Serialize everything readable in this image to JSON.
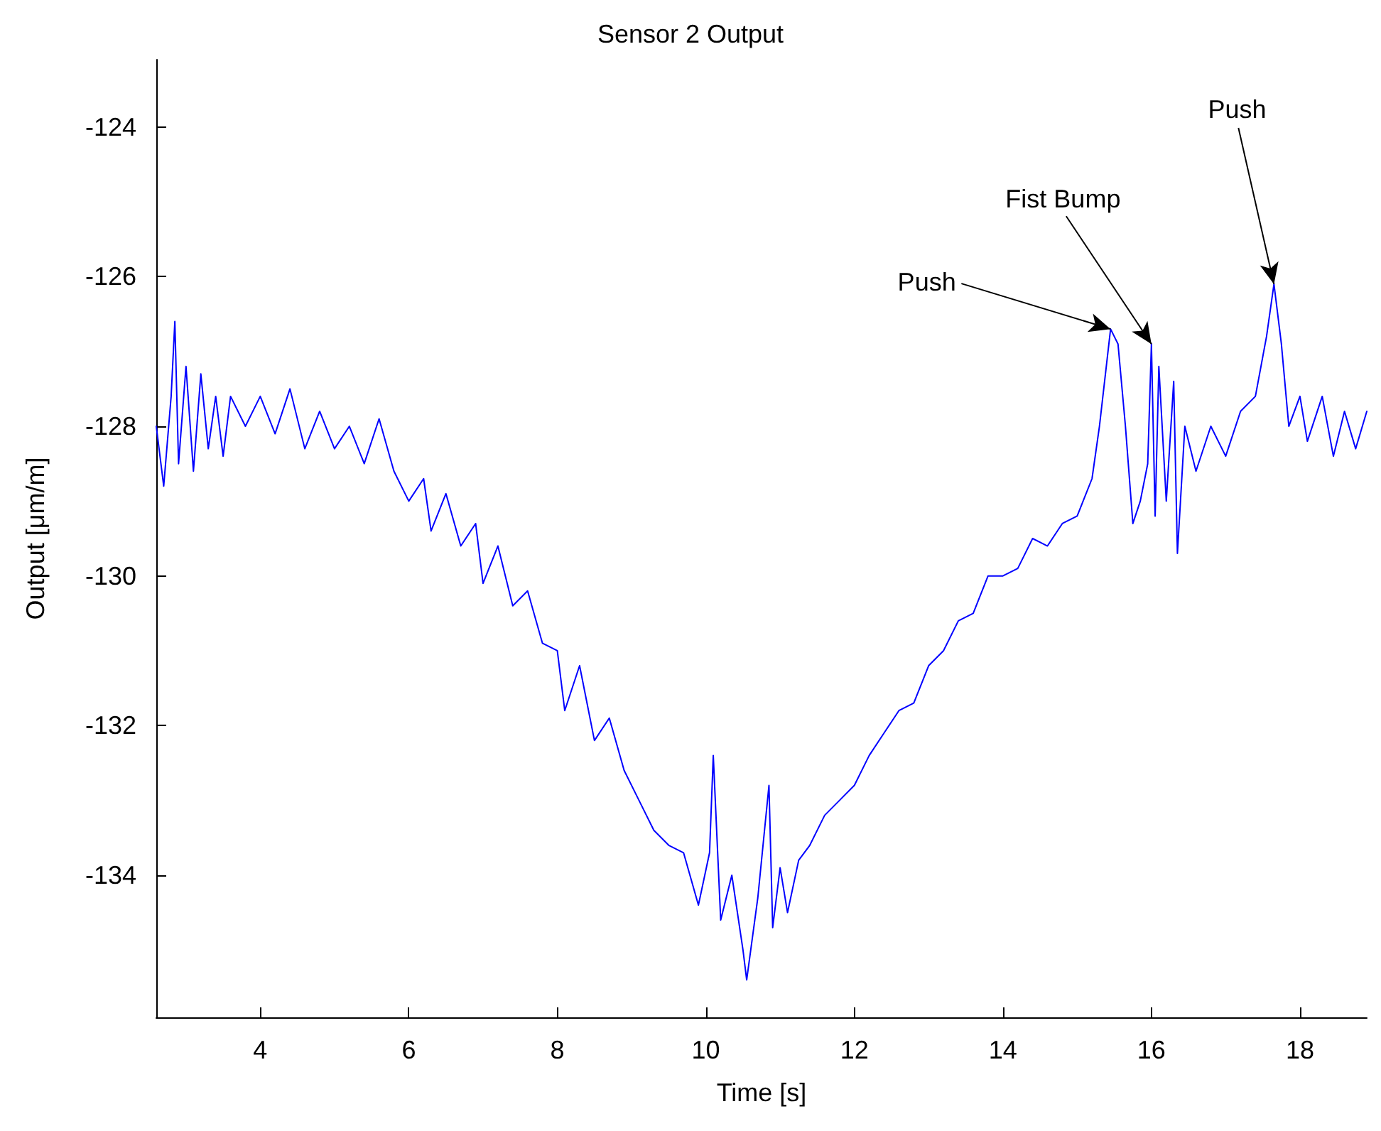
{
  "chart_data": {
    "type": "line",
    "title": "Sensor 2 Output",
    "xlabel": "Time [s]",
    "ylabel": "Output [μm/m]",
    "xlim": [
      2.6,
      18.9
    ],
    "ylim": [
      -135.9,
      -123.1
    ],
    "xticks": [
      4,
      6,
      8,
      10,
      12,
      14,
      16,
      18
    ],
    "yticks": [
      -134,
      -132,
      -130,
      -128,
      -126,
      -124
    ],
    "grid": false,
    "marker": "none",
    "line_style": "solid",
    "annotations": [
      {
        "text": "Push",
        "x": 15.45,
        "y": -126.7
      },
      {
        "text": "Fist Bump",
        "x": 16.0,
        "y": -126.9
      },
      {
        "text": "Push",
        "x": 17.65,
        "y": -126.1
      }
    ],
    "series": [
      {
        "color": "#0000ff",
        "x": [
          2.6,
          2.7,
          2.8,
          2.85,
          2.9,
          3.0,
          3.1,
          3.2,
          3.3,
          3.4,
          3.5,
          3.6,
          3.8,
          4.0,
          4.2,
          4.4,
          4.6,
          4.8,
          5.0,
          5.2,
          5.4,
          5.6,
          5.8,
          6.0,
          6.2,
          6.3,
          6.5,
          6.7,
          6.9,
          7.0,
          7.2,
          7.4,
          7.6,
          7.8,
          8.0,
          8.1,
          8.3,
          8.5,
          8.7,
          8.9,
          9.1,
          9.3,
          9.5,
          9.7,
          9.9,
          10.05,
          10.1,
          10.2,
          10.35,
          10.5,
          10.55,
          10.7,
          10.85,
          10.9,
          11.0,
          11.1,
          11.25,
          11.4,
          11.6,
          11.8,
          12.0,
          12.2,
          12.4,
          12.6,
          12.8,
          13.0,
          13.2,
          13.4,
          13.6,
          13.8,
          14.0,
          14.2,
          14.4,
          14.6,
          14.8,
          15.0,
          15.2,
          15.3,
          15.45,
          15.55,
          15.65,
          15.75,
          15.85,
          15.95,
          16.0,
          16.05,
          16.1,
          16.2,
          16.3,
          16.35,
          16.45,
          16.6,
          16.8,
          17.0,
          17.2,
          17.4,
          17.55,
          17.65,
          17.75,
          17.85,
          18.0,
          18.1,
          18.3,
          18.45,
          18.6,
          18.75,
          18.9
        ],
        "values": [
          -128.0,
          -128.8,
          -127.6,
          -126.6,
          -128.5,
          -127.2,
          -128.6,
          -127.3,
          -128.3,
          -127.6,
          -128.4,
          -127.6,
          -128.0,
          -127.6,
          -128.1,
          -127.5,
          -128.3,
          -127.8,
          -128.3,
          -128.0,
          -128.5,
          -127.9,
          -128.6,
          -129.0,
          -128.7,
          -129.4,
          -128.9,
          -129.6,
          -129.3,
          -130.1,
          -129.6,
          -130.4,
          -130.2,
          -130.9,
          -131.0,
          -131.8,
          -131.2,
          -132.2,
          -131.9,
          -132.6,
          -133.0,
          -133.4,
          -133.6,
          -133.7,
          -134.4,
          -133.7,
          -132.4,
          -134.6,
          -134.0,
          -135.0,
          -135.4,
          -134.3,
          -132.8,
          -134.7,
          -133.9,
          -134.5,
          -133.8,
          -133.6,
          -133.2,
          -133.0,
          -132.8,
          -132.4,
          -132.1,
          -131.8,
          -131.7,
          -131.2,
          -131.0,
          -130.6,
          -130.5,
          -130.0,
          -130.0,
          -129.9,
          -129.5,
          -129.6,
          -129.3,
          -129.2,
          -128.7,
          -128.0,
          -126.7,
          -126.9,
          -128.0,
          -129.3,
          -129.0,
          -128.5,
          -126.9,
          -129.2,
          -127.2,
          -129.0,
          -127.4,
          -129.7,
          -128.0,
          -128.6,
          -128.0,
          -128.4,
          -127.8,
          -127.6,
          -126.8,
          -126.1,
          -126.9,
          -128.0,
          -127.6,
          -128.2,
          -127.6,
          -128.4,
          -127.8,
          -128.3,
          -127.8
        ]
      }
    ]
  }
}
